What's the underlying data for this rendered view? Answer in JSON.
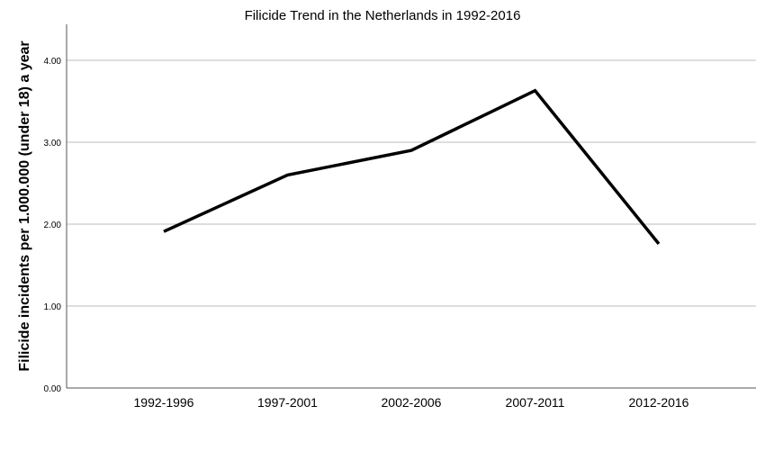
{
  "chart_data": {
    "type": "line",
    "title": "Filicide Trend in the Netherlands in 1992-2016",
    "xlabel": "",
    "ylabel": "Filicide incidents per 1.000.000 (under 18) a year",
    "categories": [
      "1992-1996",
      "1997-2001",
      "2002-2006",
      "2007-2011",
      "2012-2016"
    ],
    "series": [
      {
        "name": "Filicide incidents",
        "values": [
          1.91,
          2.6,
          2.9,
          3.63,
          1.76
        ],
        "color": "#000000"
      }
    ],
    "ylim": [
      0,
      4.44
    ],
    "yticks": [
      0,
      1,
      2,
      3,
      4
    ],
    "ytick_labels": [
      "0.00",
      "1.00",
      "2.00",
      "3.00",
      "4.00"
    ],
    "grid": true,
    "gridColor": "#bdbdbd"
  }
}
